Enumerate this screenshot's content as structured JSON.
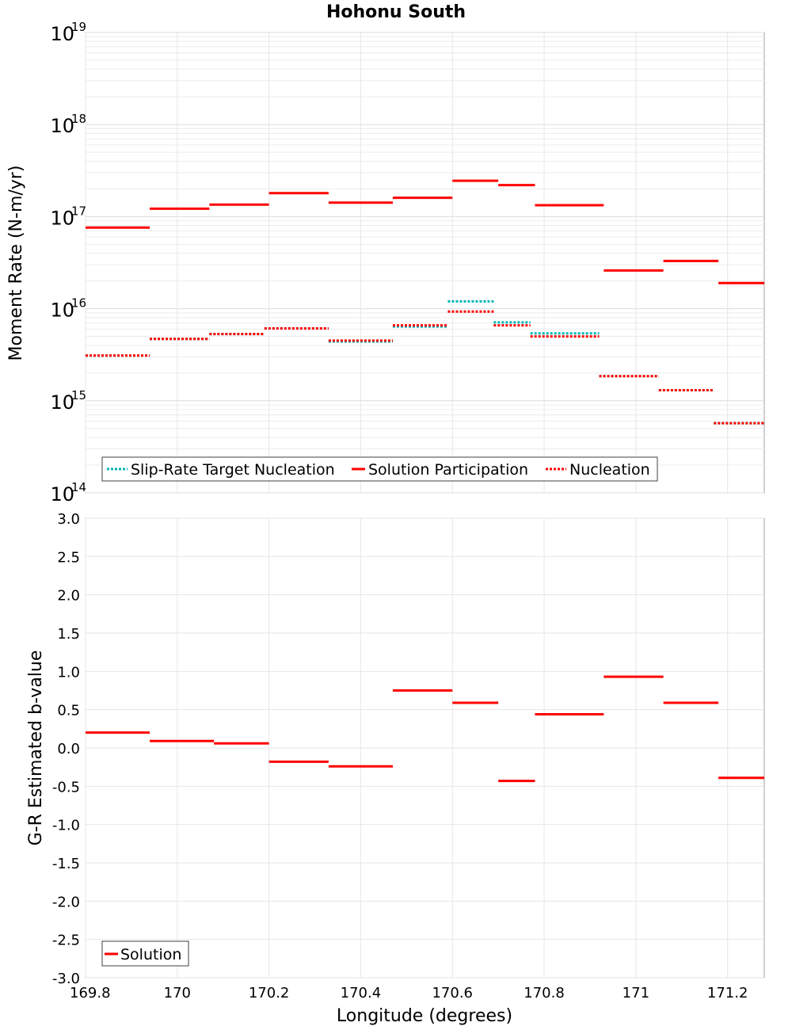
{
  "chart_data": [
    {
      "type": "line",
      "title": "Hohonu South",
      "xlabel": "Longitude (degrees)",
      "ylabel": "Moment Rate (N-m/yr)",
      "xlim": [
        169.8,
        171.28
      ],
      "ylim": [
        100000000000000.0,
        1e+19
      ],
      "yscale": "log",
      "y_ticks": [
        {
          "base": "10",
          "exp": "14",
          "value": 100000000000000.0
        },
        {
          "base": "10",
          "exp": "15",
          "value": 1000000000000000.0
        },
        {
          "base": "10",
          "exp": "16",
          "value": 1e+16
        },
        {
          "base": "10",
          "exp": "17",
          "value": 1e+17
        },
        {
          "base": "10",
          "exp": "18",
          "value": 1e+18
        },
        {
          "base": "10",
          "exp": "19",
          "value": 1e+19
        }
      ],
      "grid": true,
      "legend_position": "bottom-left",
      "series": [
        {
          "name": "Slip-Rate Target Nucleation",
          "color": "#00b4b4",
          "style": "dotted",
          "segments": [
            {
              "x": [
                169.8,
                169.94
              ],
              "y": 3100000000000000.0
            },
            {
              "x": [
                169.94,
                170.07
              ],
              "y": 4700000000000000.0
            },
            {
              "x": [
                170.07,
                170.19
              ],
              "y": 5300000000000000.0
            },
            {
              "x": [
                170.19,
                170.33
              ],
              "y": 6100000000000000.0
            },
            {
              "x": [
                170.33,
                170.47
              ],
              "y": 4400000000000000.0
            },
            {
              "x": [
                170.47,
                170.59
              ],
              "y": 6400000000000000.0
            },
            {
              "x": [
                170.59,
                170.69
              ],
              "y": 1.2e+16
            },
            {
              "x": [
                170.69,
                170.77
              ],
              "y": 7100000000000000.0
            },
            {
              "x": [
                170.77,
                170.92
              ],
              "y": 5400000000000000.0
            },
            {
              "x": [
                170.92,
                171.05
              ],
              "y": 1850000000000000.0
            },
            {
              "x": [
                171.05,
                171.17
              ],
              "y": 1300000000000000.0
            },
            {
              "x": [
                171.17,
                171.28
              ],
              "y": 570000000000000.0
            }
          ]
        },
        {
          "name": "Solution Participation",
          "color": "#ff0000",
          "style": "solid",
          "segments": [
            {
              "x": [
                169.8,
                169.94
              ],
              "y": 7.6e+16
            },
            {
              "x": [
                169.94,
                170.07
              ],
              "y": 1.22e+17
            },
            {
              "x": [
                170.07,
                170.2
              ],
              "y": 1.35e+17
            },
            {
              "x": [
                170.2,
                170.33
              ],
              "y": 1.8e+17
            },
            {
              "x": [
                170.33,
                170.47
              ],
              "y": 1.42e+17
            },
            {
              "x": [
                170.47,
                170.6
              ],
              "y": 1.6e+17
            },
            {
              "x": [
                170.6,
                170.7
              ],
              "y": 2.45e+17
            },
            {
              "x": [
                170.7,
                170.78
              ],
              "y": 2.2e+17
            },
            {
              "x": [
                170.78,
                170.93
              ],
              "y": 1.33e+17
            },
            {
              "x": [
                170.93,
                171.06
              ],
              "y": 2.6e+16
            },
            {
              "x": [
                171.06,
                171.18
              ],
              "y": 3.3e+16
            },
            {
              "x": [
                171.18,
                171.28
              ],
              "y": 1.9e+16
            }
          ]
        },
        {
          "name": "Nucleation",
          "color": "#ff0000",
          "style": "dotted",
          "segments": [
            {
              "x": [
                169.8,
                169.94
              ],
              "y": 3100000000000000.0
            },
            {
              "x": [
                169.94,
                170.07
              ],
              "y": 4700000000000000.0
            },
            {
              "x": [
                170.07,
                170.19
              ],
              "y": 5300000000000000.0
            },
            {
              "x": [
                170.19,
                170.33
              ],
              "y": 6100000000000000.0
            },
            {
              "x": [
                170.33,
                170.47
              ],
              "y": 4500000000000000.0
            },
            {
              "x": [
                170.47,
                170.59
              ],
              "y": 6600000000000000.0
            },
            {
              "x": [
                170.59,
                170.69
              ],
              "y": 9300000000000000.0
            },
            {
              "x": [
                170.69,
                170.77
              ],
              "y": 6600000000000000.0
            },
            {
              "x": [
                170.77,
                170.92
              ],
              "y": 5000000000000000.0
            },
            {
              "x": [
                170.92,
                171.05
              ],
              "y": 1850000000000000.0
            },
            {
              "x": [
                171.05,
                171.17
              ],
              "y": 1300000000000000.0
            },
            {
              "x": [
                171.17,
                171.28
              ],
              "y": 570000000000000.0
            }
          ]
        }
      ]
    },
    {
      "type": "line",
      "title": "",
      "xlabel": "Longitude (degrees)",
      "ylabel": "G-R Estimated b-value",
      "xlim": [
        169.8,
        171.28
      ],
      "ylim": [
        -3.0,
        3.0
      ],
      "x_ticks": [
        "169.8",
        "170",
        "170.2",
        "170.4",
        "170.6",
        "170.8",
        "171",
        "171.2"
      ],
      "x_tick_values": [
        169.8,
        170.0,
        170.2,
        170.4,
        170.6,
        170.8,
        171.0,
        171.2
      ],
      "y_ticks": [
        "-3.0",
        "-2.5",
        "-2.0",
        "-1.5",
        "-1.0",
        "-0.5",
        "0.0",
        "0.5",
        "1.0",
        "1.5",
        "2.0",
        "2.5",
        "3.0"
      ],
      "y_tick_values": [
        -3.0,
        -2.5,
        -2.0,
        -1.5,
        -1.0,
        -0.5,
        0.0,
        0.5,
        1.0,
        1.5,
        2.0,
        2.5,
        3.0
      ],
      "grid": true,
      "legend_position": "bottom-left",
      "series": [
        {
          "name": "Solution",
          "color": "#ff0000",
          "style": "solid",
          "segments": [
            {
              "x": [
                169.8,
                169.94
              ],
              "y": 0.2
            },
            {
              "x": [
                169.94,
                170.08
              ],
              "y": 0.09
            },
            {
              "x": [
                170.08,
                170.2
              ],
              "y": 0.06
            },
            {
              "x": [
                170.2,
                170.33
              ],
              "y": -0.18
            },
            {
              "x": [
                170.33,
                170.47
              ],
              "y": -0.24
            },
            {
              "x": [
                170.47,
                170.6
              ],
              "y": 0.75
            },
            {
              "x": [
                170.6,
                170.7
              ],
              "y": 0.59
            },
            {
              "x": [
                170.7,
                170.78
              ],
              "y": -0.43
            },
            {
              "x": [
                170.78,
                170.93
              ],
              "y": 0.44
            },
            {
              "x": [
                170.93,
                171.06
              ],
              "y": 0.93
            },
            {
              "x": [
                171.06,
                171.18
              ],
              "y": 0.59
            },
            {
              "x": [
                171.18,
                171.28
              ],
              "y": -0.39
            }
          ]
        }
      ]
    }
  ]
}
